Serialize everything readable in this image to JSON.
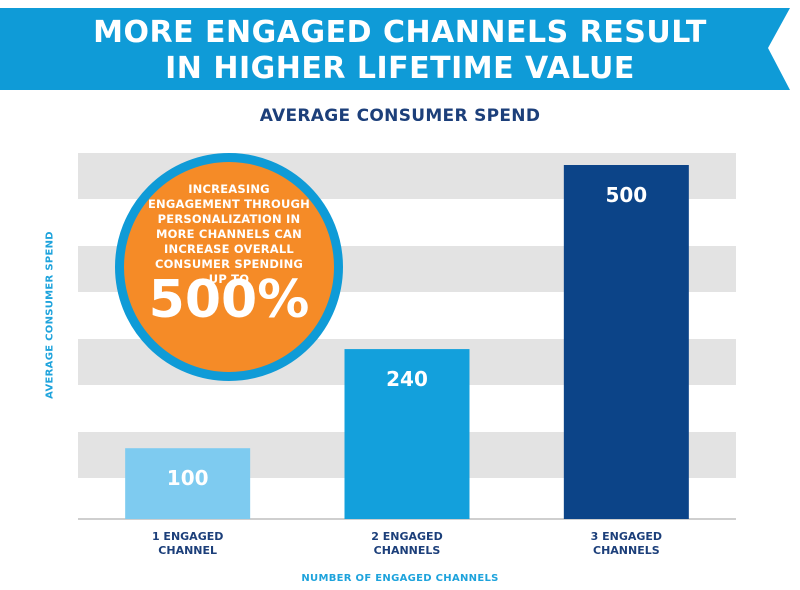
{
  "banner": {
    "line1": "MORE ENGAGED CHANNELS RESULT",
    "line2": "IN HIGHER LIFETIME VALUE"
  },
  "callout": {
    "text": "INCREASING\nENGAGEMENT THROUGH\nPERSONALIZATION IN\nMORE CHANNELS CAN\nINCREASE OVERALL\nCONSUMER SPENDING\nUP TO",
    "value": "500%"
  },
  "colors": {
    "banner": "#0f9bd7",
    "title": "#1c3f7a",
    "axis_label": "#1ea3dc",
    "callout_fill": "#f58b27",
    "callout_ring": "#0f9bd7",
    "grid_band": "#e3e3e3"
  },
  "chart_data": {
    "type": "bar",
    "title": "AVERAGE CONSUMER SPEND",
    "xlabel": "NUMBER OF ENGAGED CHANNELS",
    "ylabel": "AVERAGE CONSUMER SPEND",
    "categories": [
      [
        "1 ENGAGED",
        "CHANNEL"
      ],
      [
        "2 ENGAGED",
        "CHANNELS"
      ],
      [
        "3 ENGAGED",
        "CHANNELS"
      ]
    ],
    "values": [
      100,
      240,
      500
    ],
    "bar_colors": [
      "#7ecbf0",
      "#13a0dc",
      "#0c4488"
    ],
    "data_labels": [
      "100",
      "240",
      "500"
    ],
    "ylim": [
      0,
      500
    ],
    "grid": true
  }
}
